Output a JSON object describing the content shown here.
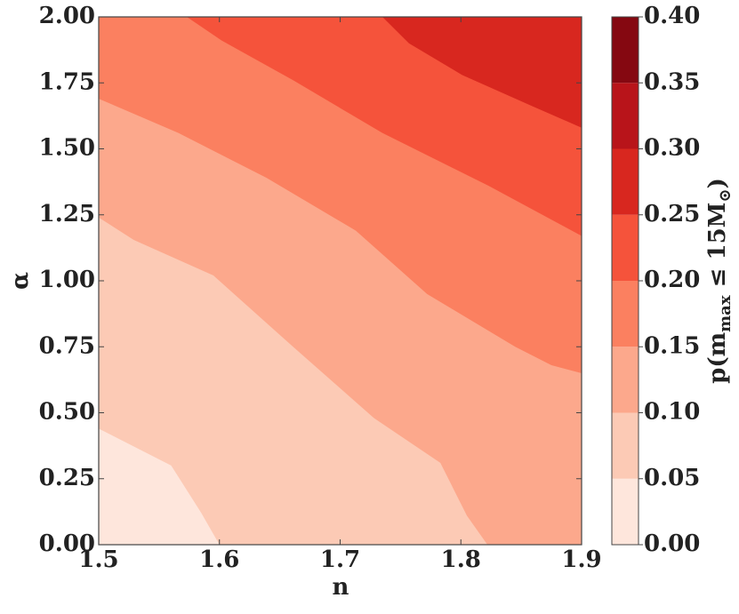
{
  "chart_data": {
    "type": "contour",
    "xlabel": "n",
    "ylabel": "α",
    "colorbar_label": [
      "p(m",
      "max",
      " ≤ 15M",
      "⊙",
      ")"
    ],
    "xlim": [
      1.5,
      1.9
    ],
    "ylim": [
      0,
      2
    ],
    "xticks": [
      1.5,
      1.6,
      1.7,
      1.8,
      1.9
    ],
    "yticks": [
      {
        "value": 0,
        "label": "0.00"
      },
      {
        "value": 0.25,
        "label": "0.25"
      },
      {
        "value": 0.5,
        "label": "0.50"
      },
      {
        "value": 0.75,
        "label": "0.75"
      },
      {
        "value": 1,
        "label": "1.00"
      },
      {
        "value": 1.25,
        "label": "1.25"
      },
      {
        "value": 1.5,
        "label": "1.50"
      },
      {
        "value": 1.75,
        "label": "1.75"
      },
      {
        "value": 2,
        "label": "2.00"
      }
    ],
    "levels": [
      {
        "value": 0,
        "label": "0.00"
      },
      {
        "value": 0.05,
        "label": "0.05"
      },
      {
        "value": 0.1,
        "label": "0.10"
      },
      {
        "value": 0.15,
        "label": "0.15"
      },
      {
        "value": 0.2,
        "label": "0.20"
      },
      {
        "value": 0.25,
        "label": "0.25"
      },
      {
        "value": 0.3,
        "label": "0.30"
      },
      {
        "value": 0.35,
        "label": "0.35"
      },
      {
        "value": 0.4,
        "label": "0.40"
      }
    ],
    "colors": [
      "#fee6dc",
      "#fccab5",
      "#fca88c",
      "#fb8060",
      "#f5533b",
      "#d8271f",
      "#b8141a",
      "#850811"
    ],
    "contours": [
      {
        "x": [
          1.5,
          1.56,
          1.585,
          1.6
        ],
        "y": [
          0.44,
          0.3,
          0.12,
          0
        ]
      },
      {
        "x": [
          1.5,
          1.529,
          1.595,
          1.661,
          1.728,
          1.783,
          1.805,
          1.822
        ],
        "y": [
          1.24,
          1.155,
          1.02,
          0.75,
          0.48,
          0.31,
          0.11,
          0
        ]
      },
      {
        "x": [
          1.5,
          1.566,
          1.639,
          1.713,
          1.772,
          1.845,
          1.875,
          1.9
        ],
        "y": [
          1.69,
          1.56,
          1.39,
          1.19,
          0.95,
          0.75,
          0.68,
          0.65
        ]
      },
      {
        "x": [
          1.573,
          1.602,
          1.661,
          1.735,
          1.823,
          1.9
        ],
        "y": [
          2,
          1.91,
          1.76,
          1.56,
          1.36,
          1.17
        ]
      },
      {
        "x": [
          1.735,
          1.757,
          1.801,
          1.86,
          1.9
        ],
        "y": [
          2,
          1.9,
          1.78,
          1.66,
          1.58
        ]
      }
    ]
  }
}
